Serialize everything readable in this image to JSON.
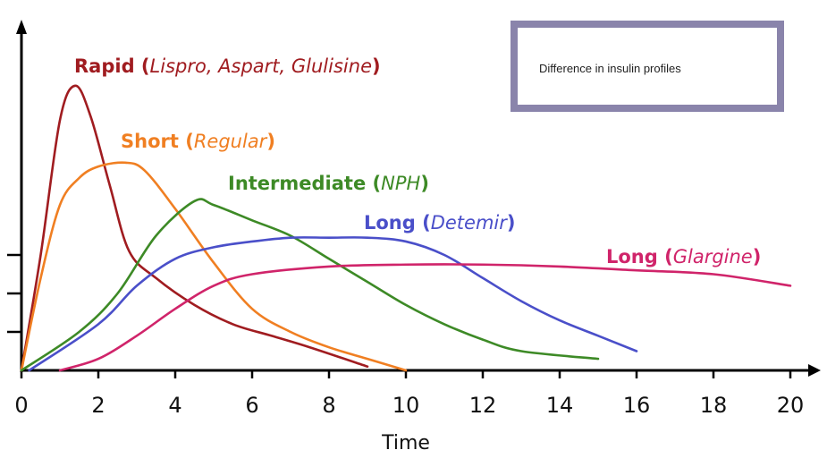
{
  "chart_data": {
    "type": "line",
    "title": "Difference in insulin profiles",
    "xlabel": "Time",
    "ylabel": "",
    "xlim": [
      0,
      20
    ],
    "ylim": [
      0,
      9
    ],
    "xticks": [
      "0",
      "2",
      "4",
      "6",
      "8",
      "10",
      "12",
      "14",
      "16",
      "18",
      "20"
    ],
    "yticks": [
      1,
      2,
      3
    ],
    "grid": false,
    "series": [
      {
        "name": "Rapid",
        "detail": "Lispro, Aspart, Glulisine",
        "color": "#a01c20",
        "points": [
          [
            0,
            0
          ],
          [
            0.5,
            3.0
          ],
          [
            1.0,
            6.5
          ],
          [
            1.4,
            7.4
          ],
          [
            1.8,
            6.6
          ],
          [
            2.3,
            4.8
          ],
          [
            2.8,
            3.1
          ],
          [
            3.5,
            2.4
          ],
          [
            4.5,
            1.7
          ],
          [
            5.5,
            1.2
          ],
          [
            6.5,
            0.9
          ],
          [
            7.5,
            0.6
          ],
          [
            9,
            0.1
          ]
        ]
      },
      {
        "name": "Short",
        "detail": "Regular",
        "color": "#f07f22",
        "points": [
          [
            0,
            0
          ],
          [
            0.5,
            2.4
          ],
          [
            1,
            4.3
          ],
          [
            1.5,
            5.0
          ],
          [
            2,
            5.3
          ],
          [
            2.7,
            5.4
          ],
          [
            3.2,
            5.2
          ],
          [
            4,
            4.2
          ],
          [
            5,
            2.8
          ],
          [
            6,
            1.6
          ],
          [
            7,
            1.0
          ],
          [
            8,
            0.6
          ],
          [
            9,
            0.3
          ],
          [
            10,
            0
          ]
        ]
      },
      {
        "name": "Intermediate",
        "detail": "NPH",
        "color": "#3d8a26",
        "points": [
          [
            0,
            0
          ],
          [
            1.5,
            1.0
          ],
          [
            2.5,
            2.0
          ],
          [
            3.5,
            3.5
          ],
          [
            4.5,
            4.4
          ],
          [
            5,
            4.3
          ],
          [
            6,
            3.9
          ],
          [
            7,
            3.5
          ],
          [
            8,
            2.9
          ],
          [
            9,
            2.3
          ],
          [
            10,
            1.7
          ],
          [
            11,
            1.2
          ],
          [
            12,
            0.8
          ],
          [
            13,
            0.5
          ],
          [
            15,
            0.3
          ]
        ]
      },
      {
        "name": "Long",
        "detail": "Detemir",
        "color": "#4a4fc9",
        "points": [
          [
            0.2,
            0
          ],
          [
            2,
            1.2
          ],
          [
            3,
            2.2
          ],
          [
            4,
            2.9
          ],
          [
            5,
            3.2
          ],
          [
            6,
            3.35
          ],
          [
            7,
            3.45
          ],
          [
            8,
            3.45
          ],
          [
            9,
            3.45
          ],
          [
            10,
            3.35
          ],
          [
            11,
            3.0
          ],
          [
            12,
            2.4
          ],
          [
            13,
            1.8
          ],
          [
            14,
            1.3
          ],
          [
            15,
            0.9
          ],
          [
            16,
            0.5
          ]
        ]
      },
      {
        "name": "Long",
        "detail": "Glargine",
        "color": "#d0246a",
        "points": [
          [
            1,
            0
          ],
          [
            2,
            0.3
          ],
          [
            3,
            0.9
          ],
          [
            4,
            1.6
          ],
          [
            5,
            2.2
          ],
          [
            6,
            2.5
          ],
          [
            8,
            2.7
          ],
          [
            10,
            2.75
          ],
          [
            12,
            2.75
          ],
          [
            14,
            2.7
          ],
          [
            16,
            2.6
          ],
          [
            18,
            2.5
          ],
          [
            20,
            2.2
          ]
        ]
      }
    ]
  }
}
